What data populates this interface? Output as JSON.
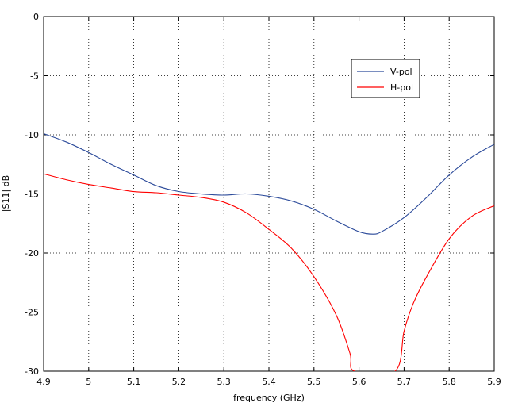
{
  "chart_data": {
    "type": "line",
    "xlabel": "frequency (GHz)",
    "ylabel": "|S11| dB",
    "xlim": [
      4.9,
      5.9
    ],
    "ylim": [
      -30,
      0
    ],
    "xticks": [
      "4.9",
      "5",
      "5.1",
      "5.2",
      "5.3",
      "5.4",
      "5.5",
      "5.6",
      "5.7",
      "5.8",
      "5.9"
    ],
    "yticks": [
      "0",
      "-5",
      "-10",
      "-15",
      "-20",
      "-25",
      "-30"
    ],
    "grid": true,
    "legend_position": "top-right",
    "series": [
      {
        "name": "V-pol",
        "color": "#2b4a9a",
        "x": [
          4.9,
          4.95,
          5.0,
          5.05,
          5.1,
          5.15,
          5.2,
          5.25,
          5.3,
          5.35,
          5.4,
          5.45,
          5.5,
          5.55,
          5.6,
          5.63,
          5.65,
          5.7,
          5.75,
          5.8,
          5.85,
          5.9
        ],
        "y": [
          -9.9,
          -10.6,
          -11.5,
          -12.5,
          -13.4,
          -14.3,
          -14.8,
          -15.0,
          -15.1,
          -15.0,
          -15.2,
          -15.6,
          -16.3,
          -17.3,
          -18.2,
          -18.4,
          -18.2,
          -17.0,
          -15.3,
          -13.4,
          -11.9,
          -10.8
        ]
      },
      {
        "name": "H-pol",
        "color": "#ff0000",
        "x": [
          4.9,
          4.95,
          5.0,
          5.05,
          5.1,
          5.15,
          5.2,
          5.25,
          5.3,
          5.35,
          5.4,
          5.45,
          5.5,
          5.55,
          5.58,
          5.59,
          5.68,
          5.7,
          5.72,
          5.75,
          5.8,
          5.85,
          5.9
        ],
        "y": [
          -13.3,
          -13.8,
          -14.2,
          -14.5,
          -14.8,
          -14.9,
          -15.1,
          -15.3,
          -15.7,
          -16.6,
          -18.0,
          -19.6,
          -22.0,
          -25.3,
          -28.5,
          -30.0,
          -30.0,
          -26.6,
          -24.3,
          -22.0,
          -18.8,
          -16.9,
          -16.0
        ]
      }
    ]
  }
}
